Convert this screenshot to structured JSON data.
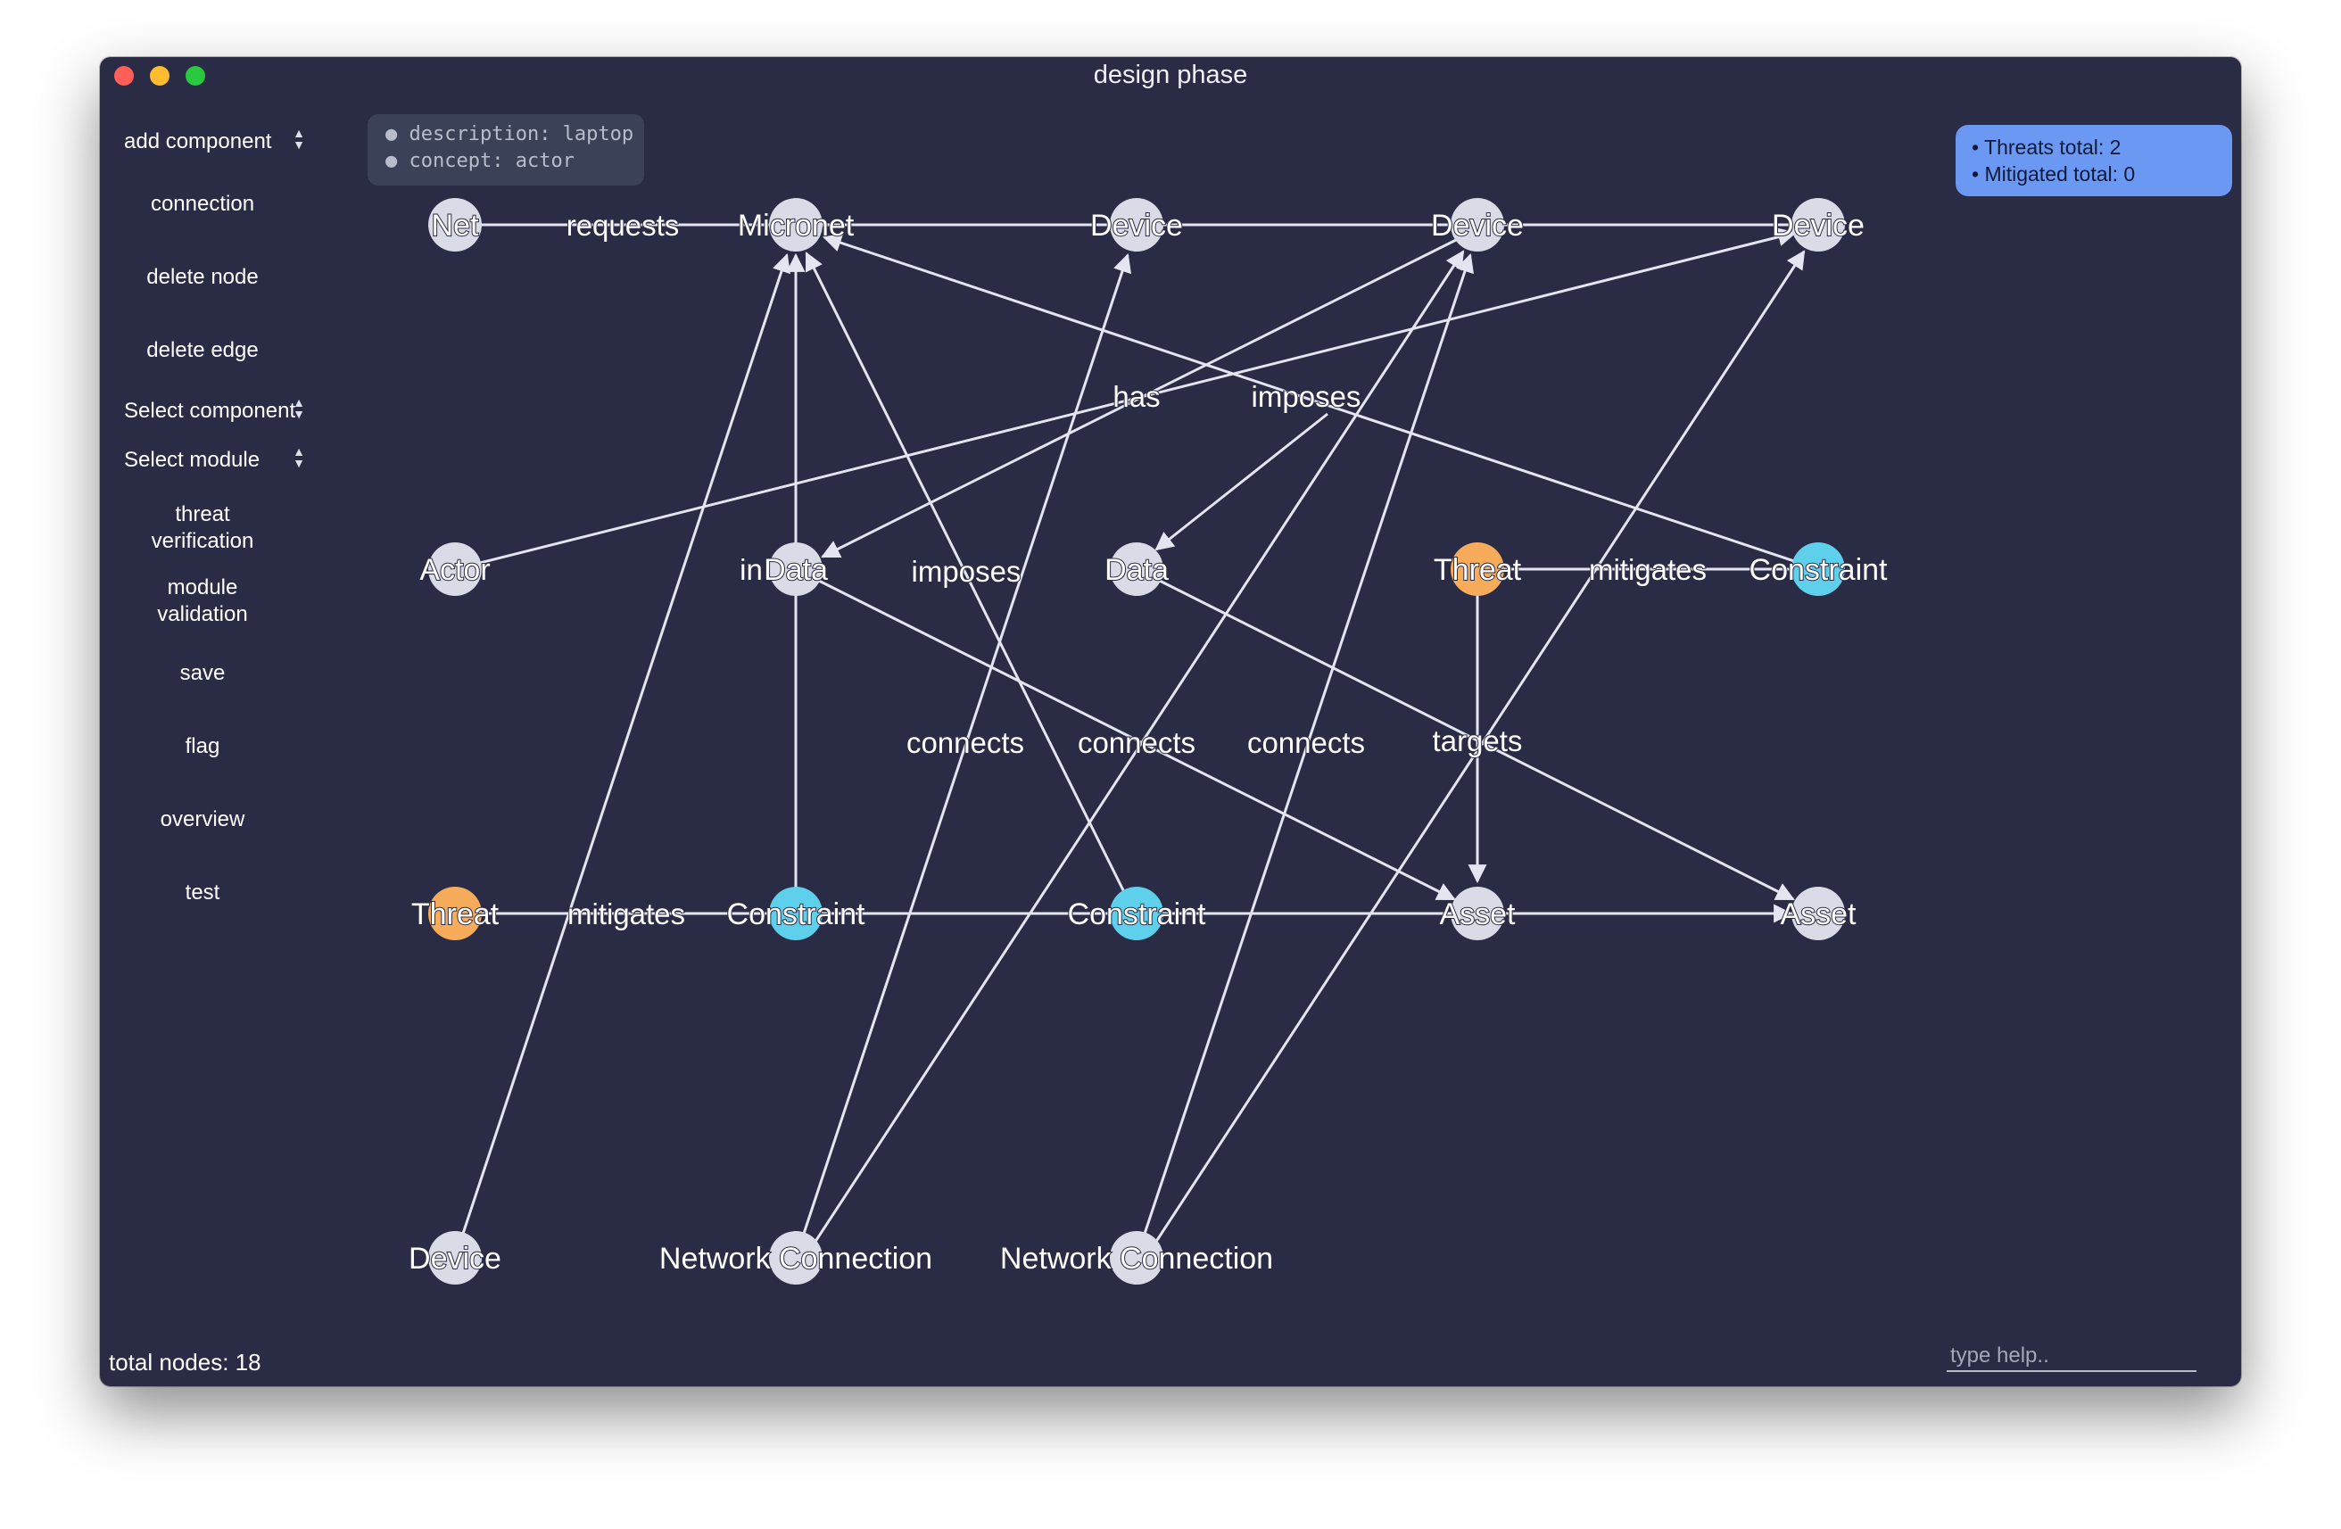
{
  "window": {
    "title": "design phase"
  },
  "sidebar": {
    "add_component": "add component",
    "connection": "connection",
    "delete_node": "delete node",
    "delete_edge": "delete edge",
    "select_component": "Select component",
    "select_module": "Select module",
    "threat_verification_1": "threat",
    "threat_verification_2": "verification",
    "module_validation_1": "module",
    "module_validation_2": "validation",
    "save": "save",
    "flag": "flag",
    "overview": "overview",
    "test": "test"
  },
  "info": {
    "description": "description: laptop",
    "concept": "concept: actor"
  },
  "stats": {
    "threats": "Threats total: 2",
    "mitigated": "Mitigated total: 0"
  },
  "footer": {
    "total_nodes": "total nodes: 18",
    "help_placeholder": "type help.."
  },
  "colors": {
    "node_default": "#d9dbe6",
    "node_threat": "#f6ac5a",
    "node_constraint": "#5fd0ec",
    "background": "#2a2b44"
  },
  "graph": {
    "nodes": [
      {
        "id": "n_net",
        "label": "Net",
        "kind": "default"
      },
      {
        "id": "n_micronet",
        "label": "Micronet",
        "kind": "default"
      },
      {
        "id": "n_device_a",
        "label": "Device",
        "kind": "default"
      },
      {
        "id": "n_device_b",
        "label": "Device",
        "kind": "default"
      },
      {
        "id": "n_device_c",
        "label": "Device",
        "kind": "default"
      },
      {
        "id": "n_actor",
        "label": "Actor",
        "kind": "default"
      },
      {
        "id": "n_data1",
        "label": "Data",
        "kind": "default"
      },
      {
        "id": "n_data2",
        "label": "Data",
        "kind": "default"
      },
      {
        "id": "n_threat1",
        "label": "Threat",
        "kind": "threat"
      },
      {
        "id": "n_constraint1",
        "label": "Constraint",
        "kind": "constraint"
      },
      {
        "id": "n_threat2",
        "label": "Threat",
        "kind": "threat"
      },
      {
        "id": "n_constraint2",
        "label": "Constraint",
        "kind": "constraint"
      },
      {
        "id": "n_constraint3",
        "label": "Constraint",
        "kind": "constraint"
      },
      {
        "id": "n_asset1",
        "label": "Asset",
        "kind": "default"
      },
      {
        "id": "n_asset2",
        "label": "Asset",
        "kind": "default"
      },
      {
        "id": "n_device_d",
        "label": "Device",
        "kind": "default"
      },
      {
        "id": "n_netconn1",
        "label": "Network Connection",
        "kind": "default"
      },
      {
        "id": "n_netconn2",
        "label": "Network Connection",
        "kind": "default"
      }
    ],
    "edge_labels": {
      "requests": "requests",
      "has": "has",
      "imposes_top": "imposes",
      "in": "in",
      "imposes_mid": "imposes",
      "mitigates_right": "mitigates",
      "connects_1": "connects",
      "connects_2": "connects",
      "connects_3": "connects",
      "targets": "targets",
      "mitigates_left": "mitigates"
    }
  }
}
